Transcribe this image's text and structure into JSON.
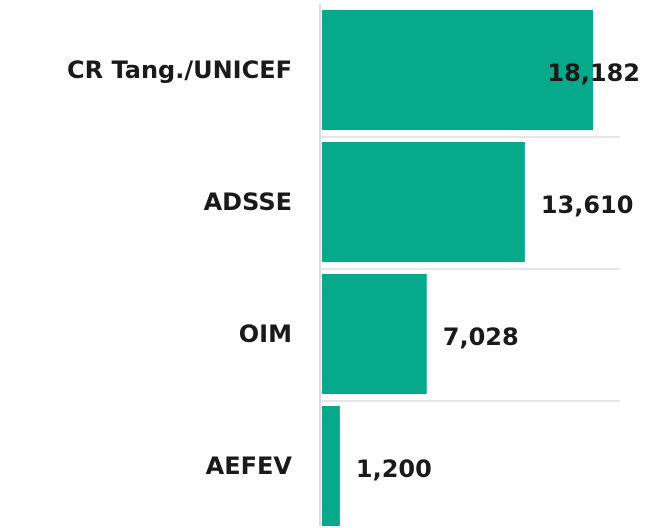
{
  "chart_data": {
    "type": "barh",
    "categories": [
      "CR Tang./UNICEF",
      "ADSSE",
      "OIM",
      "AEFEV"
    ],
    "values": [
      18182,
      13610,
      7028,
      1200
    ],
    "value_labels": [
      "18,182",
      "13,610",
      "7,028",
      "1,200"
    ],
    "color": "#06a98a"
  }
}
